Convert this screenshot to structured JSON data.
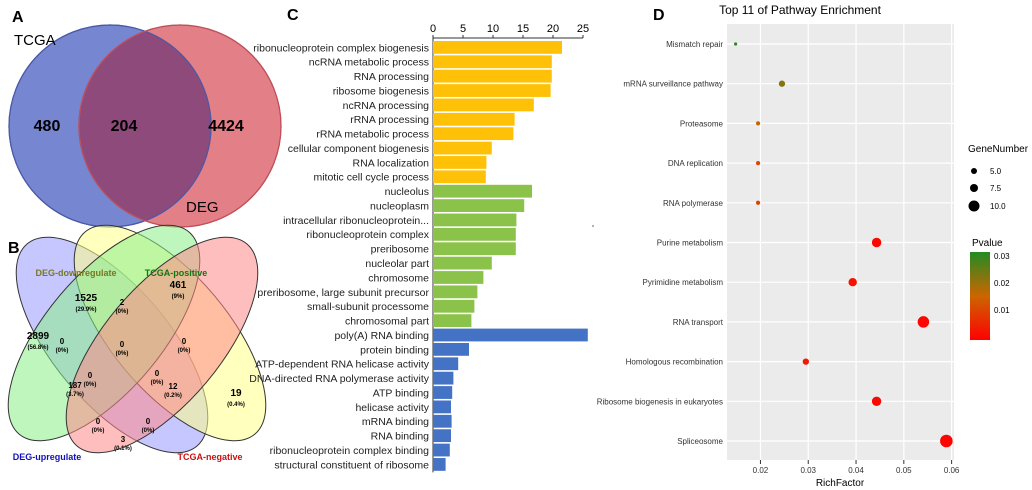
{
  "panelA": {
    "letter": "A",
    "set1": "TCGA",
    "set2": "DEG",
    "only1": "480",
    "both": "204",
    "only2": "4424",
    "colors": {
      "set1": "#6f7fce",
      "set2": "#e0727a",
      "overlap": "#8e4a7a"
    }
  },
  "panelB": {
    "letter": "B",
    "labels": {
      "down": "DEG-downregulate",
      "pos": "TCGA-positive",
      "up": "DEG-upregulate",
      "neg": "TCGA-negative"
    },
    "regions": [
      {
        "n": "1525",
        "p": "(29.9%)"
      },
      {
        "n": "461",
        "p": "(9%)"
      },
      {
        "n": "2899",
        "p": "(56.8%)"
      },
      {
        "n": "19",
        "p": "(0.4%)"
      },
      {
        "n": "0",
        "p": "(0%)"
      },
      {
        "n": "2",
        "p": "(0%)"
      },
      {
        "n": "0",
        "p": "(0%)"
      },
      {
        "n": "0",
        "p": "(0%)"
      },
      {
        "n": "0",
        "p": "(0%)"
      },
      {
        "n": "187",
        "p": "(3.7%)"
      },
      {
        "n": "0",
        "p": "(0%)"
      },
      {
        "n": "12",
        "p": "(0.2%)"
      },
      {
        "n": "0",
        "p": "(0%)"
      },
      {
        "n": "0",
        "p": "(0%)"
      },
      {
        "n": "3",
        "p": "(0.1%)"
      }
    ],
    "colors": {
      "down": "#ffff88",
      "pos": "#88ee88",
      "up": "#9999ff",
      "neg": "#ff8888"
    }
  },
  "chart_data": [
    {
      "panel": "C",
      "type": "bar",
      "orientation": "horizontal",
      "xlim": [
        0,
        25
      ],
      "xticks": [
        0,
        5,
        10,
        15,
        20,
        25
      ],
      "categories": [
        "ribonucleoprotein complex biogenesis",
        "ncRNA metabolic process",
        "RNA processing",
        "ribosome biogenesis",
        "ncRNA processing",
        "rRNA processing",
        "rRNA metabolic process",
        "cellular component biogenesis",
        "RNA localization",
        "mitotic cell cycle process",
        "nucleolus",
        "nucleoplasm",
        "intracellular ribonucleoprotein...",
        "ribonucleoprotein complex",
        "preribosome",
        "nucleolar part",
        "chromosome",
        "preribosome, large subunit precursor",
        "small-subunit processome",
        "chromosomal part",
        "poly(A) RNA binding",
        "protein binding",
        "ATP-dependent RNA helicase activity",
        "DNA-directed RNA polymerase activity",
        "ATP binding",
        "helicase activity",
        "mRNA binding",
        "RNA binding",
        "ribonucleoprotein complex binding",
        "structural constituent of ribosome"
      ],
      "values": [
        21.5,
        19.8,
        19.8,
        19.6,
        16.8,
        13.6,
        13.4,
        9.8,
        8.9,
        8.8,
        16.5,
        15.2,
        13.9,
        13.8,
        13.8,
        9.8,
        8.4,
        7.4,
        6.9,
        6.4,
        25.8,
        6,
        4.2,
        3.4,
        3.2,
        3,
        3.1,
        3,
        2.8,
        2.1
      ],
      "groups": [
        "BP",
        "BP",
        "BP",
        "BP",
        "BP",
        "BP",
        "BP",
        "BP",
        "BP",
        "BP",
        "CC",
        "CC",
        "CC",
        "CC",
        "CC",
        "CC",
        "CC",
        "CC",
        "CC",
        "CC",
        "MF",
        "MF",
        "MF",
        "MF",
        "MF",
        "MF",
        "MF",
        "MF",
        "MF",
        "MF"
      ],
      "group_colors": {
        "BP": "#ffc107",
        "CC": "#8bc34a",
        "MF": "#4472c4"
      }
    },
    {
      "panel": "D",
      "type": "scatter",
      "title": "Top 11 of Pathway Enrichment",
      "xlabel": "RichFactor",
      "xlim": [
        0.013,
        0.0605
      ],
      "xticks": [
        "0.02",
        "0.03",
        "0.04",
        "0.05",
        "0.06"
      ],
      "categories": [
        "Mismatch repair",
        "mRNA surveillance pathway",
        "Proteasome",
        "DNA replication",
        "RNA polymerase",
        "Purine metabolism",
        "Pyrimidine metabolism",
        "RNA transport",
        "Homologous recombination",
        "Ribosome biogenesis in eukaryotes",
        "Spliceosome"
      ],
      "x": [
        0.0148,
        0.0245,
        0.0195,
        0.0195,
        0.0195,
        0.0443,
        0.0393,
        0.0541,
        0.0295,
        0.0443,
        0.0589
      ],
      "gene_number": [
        3,
        6,
        4,
        4,
        4,
        9,
        8,
        11,
        6,
        9,
        12
      ],
      "pvalue": [
        0.033,
        0.024,
        0.018,
        0.012,
        0.011,
        0.0015,
        0.003,
        0.0008,
        0.004,
        0.0015,
        0.0006
      ],
      "size_legend_title": "GeneNumber",
      "size_legend": [
        "5.0",
        "7.5",
        "10.0"
      ],
      "color_legend_title": "Pvalue",
      "color_legend": [
        "0.03",
        "0.02",
        "0.01"
      ]
    }
  ],
  "letters": {
    "C": "C",
    "D": "D"
  }
}
